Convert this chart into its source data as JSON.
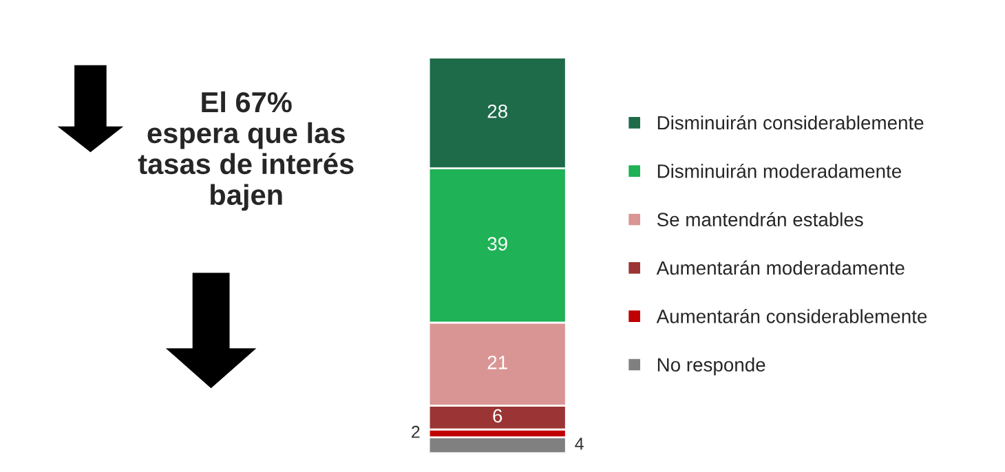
{
  "chart_data": {
    "type": "bar",
    "stacked": true,
    "categories": [
      null
    ],
    "data_labels": true,
    "legend": "right",
    "grid": false,
    "tick_labels": false,
    "annotations": [
      "El 67%\nespera que las\ntasas de interés\nbajen"
    ],
    "series": [
      {
        "name": "No responde",
        "color": "#808080",
        "values": [
          4
        ]
      },
      {
        "name": "Aumentarán considerablemente",
        "color": "#c00000",
        "values": [
          2
        ]
      },
      {
        "name": "Aumentarán moderadamente",
        "color": "#9b3535",
        "values": [
          6
        ]
      },
      {
        "name": "Se mantendrán estables",
        "color": "#d99594",
        "values": [
          21
        ]
      },
      {
        "name": "Disminuirán moderadamente",
        "color": "#1fb256",
        "values": [
          39
        ]
      },
      {
        "name": "Disminuirán considerablemente",
        "color": "#1e6b4a",
        "values": [
          28
        ]
      }
    ]
  }
}
